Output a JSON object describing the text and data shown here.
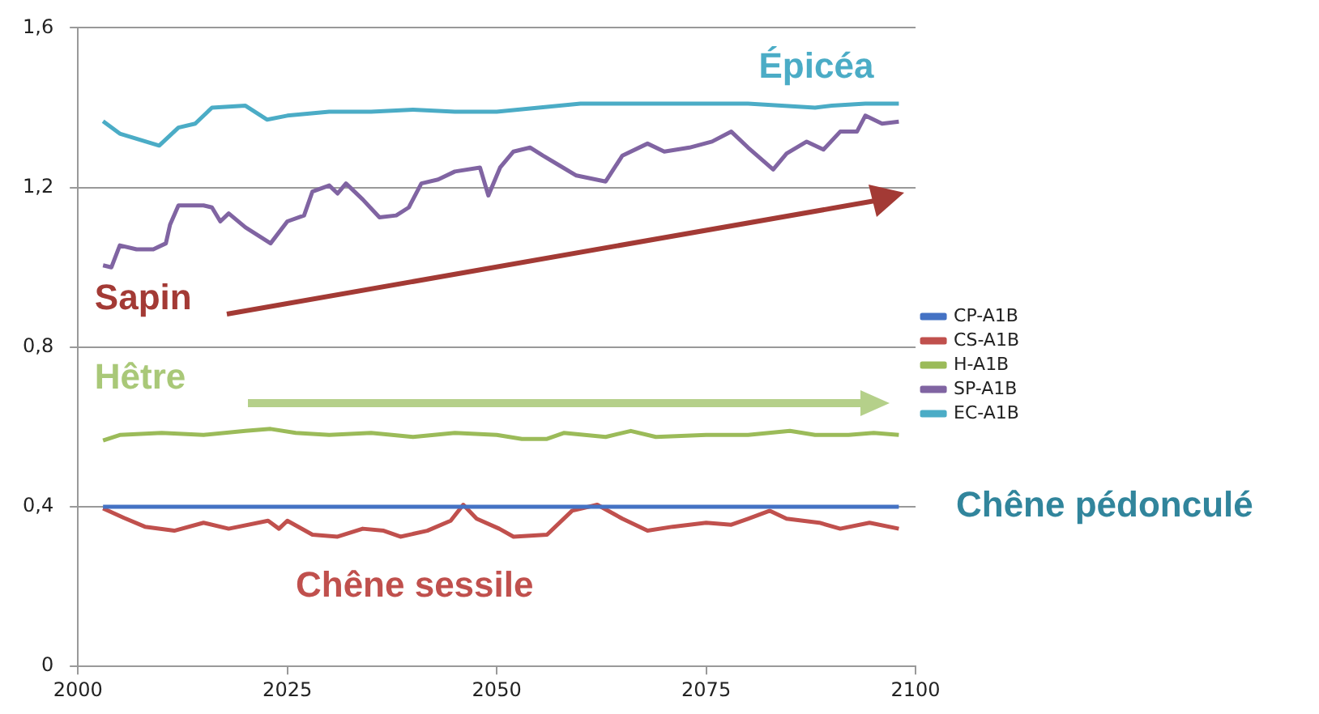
{
  "chart_data": {
    "type": "line",
    "annotations": [
      "Épicéa",
      "Sapin",
      "Hêtre",
      "Chêne sessile",
      "Chêne pédonculé"
    ],
    "xlim": [
      2000,
      2100
    ],
    "xticks": [
      2000,
      2025,
      2050,
      2075,
      2100
    ],
    "ylim": [
      0,
      1.6
    ],
    "yticks": [
      0,
      {
        "value": 0.4,
        "label": "0,4"
      },
      {
        "value": 0.8,
        "label": "0,8"
      },
      {
        "value": 1.2,
        "label": "1,2"
      },
      {
        "value": 1.6,
        "label": "1,6"
      }
    ],
    "grid": "y",
    "legend": "right",
    "marker": "none",
    "line_style": "solid",
    "series": [
      {
        "name": "CP-A1B",
        "color": "#4472c4",
        "x": [
          2003,
          2098
        ],
        "values": [
          0.4,
          0.4
        ]
      },
      {
        "name": "CS-A1B",
        "color": "#c0504d",
        "x": [
          2003,
          2005.5,
          2008,
          2011.5,
          2015,
          2018,
          2022.7,
          2024,
          2025,
          2028,
          2031,
          2034,
          2036.5,
          2038.5,
          2041.7,
          2044.5,
          2046,
          2047.6,
          2050.3,
          2052,
          2056,
          2059,
          2062,
          2065,
          2068,
          2071,
          2075,
          2078,
          2080,
          2082.6,
          2084.6,
          2088.5,
          2091,
          2094.5,
          2098
        ],
        "values": [
          0.396,
          0.372,
          0.35,
          0.34,
          0.36,
          0.345,
          0.365,
          0.345,
          0.365,
          0.33,
          0.325,
          0.345,
          0.34,
          0.325,
          0.34,
          0.365,
          0.405,
          0.37,
          0.345,
          0.325,
          0.33,
          0.39,
          0.405,
          0.37,
          0.34,
          0.35,
          0.36,
          0.355,
          0.37,
          0.39,
          0.37,
          0.36,
          0.345,
          0.36,
          0.345
        ]
      },
      {
        "name": "H-A1B",
        "color": "#9bbb59",
        "x": [
          2003,
          2005,
          2010,
          2015,
          2020,
          2023,
          2026,
          2030,
          2035,
          2040,
          2045,
          2050,
          2053,
          2056,
          2058,
          2063,
          2066,
          2069,
          2075,
          2080,
          2085,
          2088,
          2092,
          2095,
          2098
        ],
        "values": [
          0.566,
          0.58,
          0.585,
          0.58,
          0.59,
          0.595,
          0.585,
          0.58,
          0.585,
          0.575,
          0.585,
          0.58,
          0.57,
          0.57,
          0.585,
          0.575,
          0.59,
          0.575,
          0.58,
          0.58,
          0.59,
          0.58,
          0.58,
          0.585,
          0.58
        ]
      },
      {
        "name": "SP-A1B",
        "color": "#8064a2",
        "x": [
          2003,
          2004,
          2005,
          2007,
          2009,
          2010.5,
          2011,
          2012,
          2015,
          2016,
          2017,
          2018,
          2020,
          2023,
          2025,
          2027,
          2028,
          2030,
          2031,
          2032,
          2034,
          2036,
          2038,
          2039.5,
          2041,
          2043,
          2045,
          2048,
          2049,
          2050.4,
          2052,
          2054,
          2055.5,
          2057.5,
          2059.5,
          2063,
          2065,
          2068,
          2070,
          2073,
          2075.7,
          2078,
          2080,
          2083,
          2084.6,
          2087,
          2089,
          2091,
          2093,
          2094,
          2096,
          2098
        ],
        "values": [
          1.005,
          1.0,
          1.055,
          1.045,
          1.045,
          1.06,
          1.107,
          1.155,
          1.155,
          1.15,
          1.115,
          1.135,
          1.1,
          1.06,
          1.115,
          1.13,
          1.19,
          1.205,
          1.185,
          1.21,
          1.17,
          1.125,
          1.13,
          1.15,
          1.21,
          1.22,
          1.24,
          1.25,
          1.18,
          1.25,
          1.29,
          1.3,
          1.28,
          1.255,
          1.23,
          1.215,
          1.28,
          1.31,
          1.29,
          1.3,
          1.315,
          1.34,
          1.3,
          1.245,
          1.285,
          1.315,
          1.295,
          1.34,
          1.34,
          1.38,
          1.36,
          1.365
        ]
      },
      {
        "name": "EC-A1B",
        "color": "#4bacc6",
        "x": [
          2003,
          2005,
          2009.7,
          2012,
          2014,
          2016,
          2020,
          2022.6,
          2025,
          2030,
          2035,
          2040,
          2045,
          2050,
          2055,
          2060,
          2070,
          2080,
          2088,
          2090,
          2094,
          2098
        ],
        "values": [
          1.366,
          1.335,
          1.305,
          1.35,
          1.36,
          1.4,
          1.405,
          1.37,
          1.38,
          1.39,
          1.39,
          1.395,
          1.39,
          1.39,
          1.4,
          1.41,
          1.41,
          1.41,
          1.4,
          1.405,
          1.41,
          1.41
        ]
      }
    ]
  }
}
